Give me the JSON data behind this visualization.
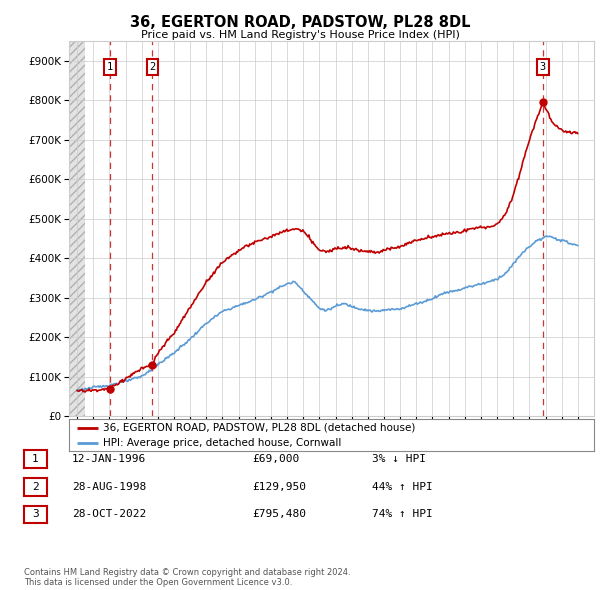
{
  "title": "36, EGERTON ROAD, PADSTOW, PL28 8DL",
  "subtitle": "Price paid vs. HM Land Registry's House Price Index (HPI)",
  "sale_dates_num": [
    1996.03,
    1998.66,
    2022.83
  ],
  "sale_prices": [
    69000,
    129950,
    795480
  ],
  "sale_labels": [
    "1",
    "2",
    "3"
  ],
  "ylim": [
    0,
    950000
  ],
  "yticks": [
    0,
    100000,
    200000,
    300000,
    400000,
    500000,
    600000,
    700000,
    800000,
    900000
  ],
  "xlim": [
    1993.5,
    2026.0
  ],
  "xticks": [
    1994,
    1995,
    1996,
    1997,
    1998,
    1999,
    2000,
    2001,
    2002,
    2003,
    2004,
    2005,
    2006,
    2007,
    2008,
    2009,
    2010,
    2011,
    2012,
    2013,
    2014,
    2015,
    2016,
    2017,
    2018,
    2019,
    2020,
    2021,
    2022,
    2023,
    2024,
    2025
  ],
  "hpi_color": "#5b9bd5",
  "price_color": "#c00000",
  "legend_entries": [
    "36, EGERTON ROAD, PADSTOW, PL28 8DL (detached house)",
    "HPI: Average price, detached house, Cornwall"
  ],
  "table_rows": [
    [
      "1",
      "12-JAN-1996",
      "£69,000",
      "3% ↓ HPI"
    ],
    [
      "2",
      "28-AUG-1998",
      "£129,950",
      "44% ↑ HPI"
    ],
    [
      "3",
      "28-OCT-2022",
      "£795,480",
      "74% ↑ HPI"
    ]
  ],
  "footer": "Contains HM Land Registry data © Crown copyright and database right 2024.\nThis data is licensed under the Open Government Licence v3.0.",
  "grid_color": "#cccccc",
  "fig_bg": "#ffffff"
}
